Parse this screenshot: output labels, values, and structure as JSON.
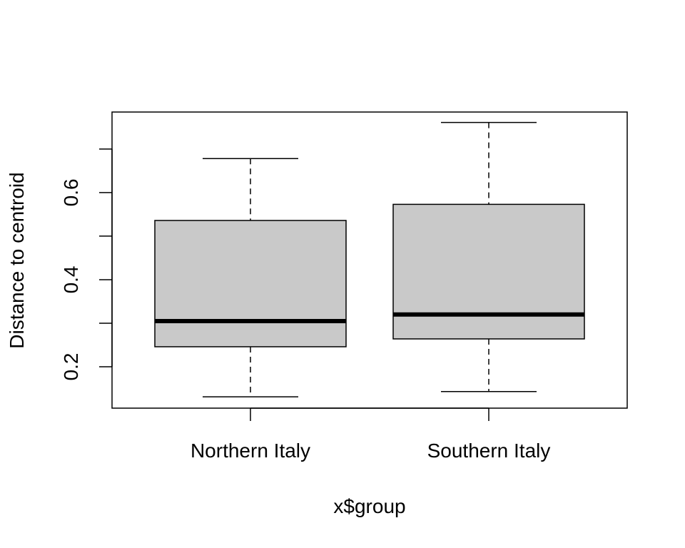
{
  "chart_data": {
    "type": "boxplot",
    "title": "",
    "xlabel": "x$group",
    "ylabel": "Distance to centroid",
    "ylim": [
      0.105,
      0.785
    ],
    "y_ticks": [
      0.2,
      0.3,
      0.4,
      0.5,
      0.6,
      0.7
    ],
    "y_tick_labels": [
      {
        "value": 0.2,
        "label": "0.2"
      },
      {
        "value": 0.4,
        "label": "0.4"
      },
      {
        "value": 0.6,
        "label": "0.6"
      }
    ],
    "categories": [
      "Northern Italy",
      "Southern Italy"
    ],
    "boxes": [
      {
        "name": "Northern Italy",
        "whisker_low": 0.131,
        "q1": 0.246,
        "median": 0.305,
        "q3": 0.536,
        "whisker_high": 0.678
      },
      {
        "name": "Southern Italy",
        "whisker_low": 0.143,
        "q1": 0.264,
        "median": 0.32,
        "q3": 0.573,
        "whisker_high": 0.761
      }
    ],
    "box_fill": "#c9c9c9",
    "grid": false
  }
}
